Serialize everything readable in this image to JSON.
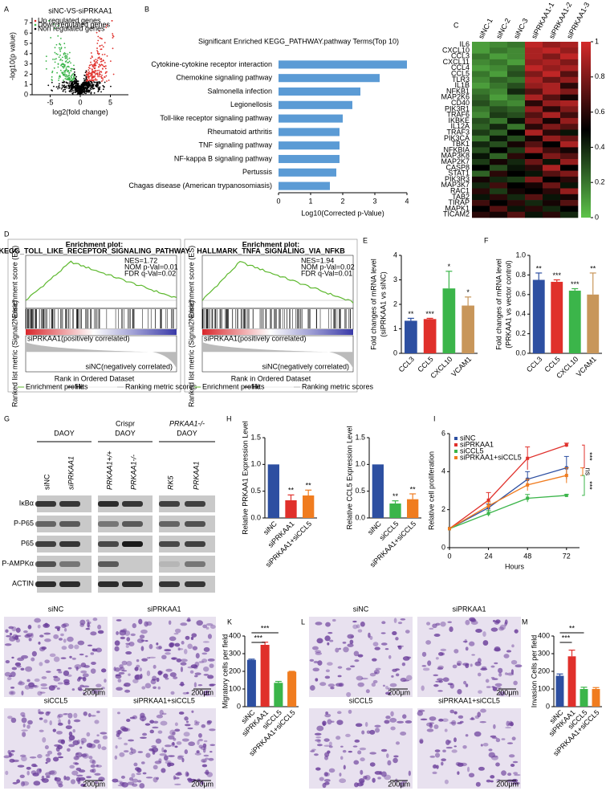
{
  "panel_letters": [
    "A",
    "B",
    "C",
    "D",
    "E",
    "F",
    "G",
    "H",
    "I",
    "J",
    "K",
    "L",
    "M"
  ],
  "chart_data": [
    {
      "type": "volcano",
      "title": "siNC-VS-siPRKAA1",
      "x_label": "log2(fold change)",
      "y_label": "-log10(p value)",
      "legend": [
        "Up regulated genes",
        "Down regulated genes",
        "Non regulated genes"
      ],
      "legend_colors": [
        "#e0302b",
        "#3bb54a",
        "#000000"
      ],
      "xlim": [
        -8,
        8
      ],
      "xticks": [
        -5,
        0,
        5
      ],
      "ylim": [
        0,
        7.5
      ],
      "yticks": [
        0,
        1,
        2,
        3,
        4,
        5,
        6,
        7
      ]
    },
    {
      "type": "hbar",
      "title": "Significant Enriched KEGG_PATHWAY.pathway Terms(Top 10)",
      "x_label": "Log10(Corrected p-Value)",
      "color": "#5b9bd5",
      "categories": [
        "Cytokine-cytokine receptor interaction",
        "Chemokine signaling pathway",
        "Salmonella infection",
        "Legionellosis",
        "Toll-like receptor signaling pathway",
        "Rheumatoid arthritis",
        "TNF signaling pathway",
        "NF-kappa B signaling pathway",
        "Pertussis",
        "Chagas disease (American trypanosomiasis)"
      ],
      "values": [
        4.0,
        3.15,
        2.55,
        2.3,
        2.0,
        1.9,
        1.9,
        1.9,
        1.8,
        1.6
      ],
      "xlim": [
        0,
        4
      ],
      "xticks": [
        0,
        1,
        2,
        3,
        4
      ]
    },
    {
      "type": "heatmap",
      "columns": [
        "siNC-1",
        "siNC-2",
        "siNC-3",
        "siPRKAA1-1",
        "siPRKAA1-2",
        "siPRKAA1-3"
      ],
      "rows": [
        "IL6",
        "CXCL10",
        "CCL3",
        "CXCL11",
        "CCL4",
        "CCL5",
        "TLR3",
        "IL1B",
        "NFKB1",
        "MAP2K6",
        "CD40",
        "PIK3R1",
        "TRAF6",
        "IKBKE",
        "IL12A",
        "TRAF3",
        "PIK3CA",
        "TBK1",
        "NFKBIA",
        "MAP3K8",
        "MAP2K7",
        "CASP8",
        "STAT1",
        "PIK3R3",
        "MAP3K7",
        "RAC1",
        "TAB2",
        "TIRAP",
        "MAPK1",
        "TICAM2"
      ],
      "values": [
        [
          0.1,
          0.15,
          0.2,
          0.95,
          0.85,
          0.9
        ],
        [
          0.1,
          0.2,
          0.15,
          0.9,
          0.95,
          0.85
        ],
        [
          0.2,
          0.1,
          0.15,
          0.9,
          0.8,
          0.95
        ],
        [
          0.15,
          0.2,
          0.1,
          0.85,
          0.9,
          0.8
        ],
        [
          0.1,
          0.15,
          0.25,
          0.95,
          0.85,
          0.9
        ],
        [
          0.2,
          0.1,
          0.3,
          0.8,
          0.95,
          0.7
        ],
        [
          0.15,
          0.25,
          0.2,
          0.9,
          0.75,
          0.85
        ],
        [
          0.1,
          0.2,
          0.3,
          0.85,
          0.9,
          0.6
        ],
        [
          0.2,
          0.15,
          0.4,
          0.7,
          0.9,
          0.8
        ],
        [
          0.25,
          0.1,
          0.2,
          0.9,
          0.7,
          0.55
        ],
        [
          0.3,
          0.2,
          0.15,
          0.6,
          0.85,
          0.9
        ],
        [
          0.2,
          0.3,
          0.25,
          0.85,
          0.6,
          0.8
        ],
        [
          0.15,
          0.35,
          0.3,
          0.7,
          0.9,
          0.65
        ],
        [
          0.3,
          0.2,
          0.45,
          0.8,
          0.55,
          0.85
        ],
        [
          0.25,
          0.4,
          0.2,
          0.6,
          0.8,
          0.7
        ],
        [
          0.35,
          0.25,
          0.5,
          0.9,
          0.6,
          0.45
        ],
        [
          0.2,
          0.45,
          0.3,
          0.55,
          0.85,
          0.75
        ],
        [
          0.4,
          0.3,
          0.55,
          0.7,
          0.5,
          0.9
        ],
        [
          0.3,
          0.5,
          0.35,
          0.85,
          0.65,
          0.55
        ],
        [
          0.45,
          0.25,
          0.6,
          0.5,
          0.8,
          0.7
        ],
        [
          0.35,
          0.55,
          0.4,
          0.75,
          0.45,
          0.85
        ],
        [
          0.5,
          0.3,
          0.45,
          0.6,
          0.9,
          0.5
        ],
        [
          0.25,
          0.6,
          0.5,
          0.45,
          0.7,
          0.8
        ],
        [
          0.55,
          0.4,
          0.35,
          0.8,
          0.5,
          0.6
        ],
        [
          0.4,
          0.65,
          0.5,
          0.55,
          0.75,
          0.45
        ],
        [
          0.6,
          0.35,
          0.55,
          0.5,
          0.6,
          0.85
        ],
        [
          0.45,
          0.6,
          0.4,
          0.7,
          0.45,
          0.55
        ],
        [
          0.65,
          0.5,
          0.6,
          0.4,
          0.55,
          0.7
        ],
        [
          0.5,
          0.7,
          0.45,
          0.6,
          0.4,
          0.5
        ],
        [
          0.6,
          0.55,
          0.7,
          0.45,
          0.6,
          0.4
        ]
      ],
      "clim": [
        0,
        1
      ],
      "colorbar_ticks": [
        0,
        0.2,
        0.4,
        0.6,
        0.8,
        1
      ],
      "colors": [
        "#5ec44a",
        "#000000",
        "#d42a2a"
      ]
    },
    {
      "type": "gsea",
      "heading": "Enrichment plot:",
      "title": "KEGG_TOLL_LIKE_RECEPTOR_SIGNALING_PATHWAY",
      "stats": [
        "NES=1.72",
        "NOM p-Val=0.01",
        "FDR q-Val=0.02"
      ],
      "pos_label": "siPRKAA1(positively correlated)",
      "neg_label": "siNC(negatively correlated)",
      "y_label": "Enrichment score (ES)",
      "y2_label": "Ranked list metric (Signal2Noise)",
      "x_label": "Rank in Ordered Dataset",
      "legend": [
        "Enrichment profile",
        "Hits",
        "Ranking metric scores"
      ]
    },
    {
      "type": "gsea",
      "heading": "Enrichment plot:",
      "title": "HALLMARK_TNFA_SIGNALING_VIA_NFKB",
      "stats": [
        "NES=1.94",
        "NOM p-Val=0.02",
        "FDR q-Val=0.01"
      ],
      "pos_label": "siPRKAA1(positively correlated)",
      "neg_label": "siNC(negatively correlated)",
      "y_label": "Enrichment score (ES)",
      "y2_label": "Ranked list metric (Signal2Noise)",
      "x_label": "Rank in Ordered Dataset",
      "legend": [
        "Enrichment profile",
        "Hits",
        "Ranking metric scores"
      ]
    },
    {
      "type": "bar",
      "y_label": [
        "Fold changes of mRNA level",
        "(siPRKAA1 vs siNC)"
      ],
      "categories": [
        "CCL3",
        "CCL5",
        "CXCL10",
        "VCAM1"
      ],
      "values": [
        1.33,
        1.4,
        2.65,
        1.95
      ],
      "errors": [
        0.1,
        0.03,
        0.7,
        0.35
      ],
      "annotations": [
        "**",
        "***",
        "*",
        "*"
      ],
      "colors": [
        "#2d4fa1",
        "#e0302b",
        "#3bb54a",
        "#c8965a"
      ],
      "ylim": [
        0,
        4
      ],
      "yticks": [
        0,
        1,
        2,
        3,
        4
      ]
    },
    {
      "type": "bar",
      "y_label": [
        "Fold changes of mRNA level",
        "(PRKAA1 vs vector control)"
      ],
      "categories": [
        "CCL3",
        "CCL5",
        "CXCL10",
        "VCAM1"
      ],
      "values": [
        0.75,
        0.73,
        0.64,
        0.6
      ],
      "errors": [
        0.07,
        0.02,
        0.02,
        0.22
      ],
      "annotations": [
        "**",
        "***",
        "***",
        "**"
      ],
      "colors": [
        "#2d4fa1",
        "#e0302b",
        "#3bb54a",
        "#c8965a"
      ],
      "ylim": [
        0,
        1.0
      ],
      "yticks": [
        {
          "value": 0,
          "label": "0.0"
        },
        {
          "value": 0.2,
          "label": "0.2"
        },
        {
          "value": 0.4,
          "label": "0.4"
        },
        {
          "value": 0.6,
          "label": "0.6"
        },
        {
          "value": 0.8,
          "label": "0.8"
        },
        {
          "value": 1,
          "label": "1.0"
        }
      ]
    },
    {
      "type": "bar",
      "y_label": [
        "Relative PRKAA1 Expression Level"
      ],
      "categories": [
        "siNC",
        "siPRKAA1",
        "siPRKAA1+siCCL5"
      ],
      "values": [
        1.0,
        0.33,
        0.42
      ],
      "errors": [
        0,
        0.1,
        0.1
      ],
      "annotations": [
        "",
        "**",
        "**"
      ],
      "colors": [
        "#2d4fa1",
        "#e0302b",
        "#f07c1f"
      ],
      "ylim": [
        0,
        1.5
      ],
      "yticks": [
        {
          "value": 0,
          "label": "0.0"
        },
        {
          "value": 0.5,
          "label": "0.5"
        },
        {
          "value": 1,
          "label": "1.0"
        },
        {
          "value": 1.5,
          "label": "1.5"
        }
      ]
    },
    {
      "type": "bar",
      "y_label": [
        "Relative CCL5 Expression Level"
      ],
      "categories": [
        "siNC",
        "siCCL5",
        "siPRKAA1+siCCL5"
      ],
      "values": [
        1.0,
        0.27,
        0.35
      ],
      "errors": [
        0,
        0.05,
        0.1
      ],
      "annotations": [
        "",
        "**",
        "**"
      ],
      "colors": [
        "#2d4fa1",
        "#3bb54a",
        "#f07c1f"
      ],
      "ylim": [
        0,
        1.5
      ],
      "yticks": [
        {
          "value": 0,
          "label": "0.0"
        },
        {
          "value": 0.5,
          "label": "0.5"
        },
        {
          "value": 1,
          "label": "1.0"
        },
        {
          "value": 1.5,
          "label": "1.5"
        }
      ]
    },
    {
      "type": "line",
      "y_label": "Relative cell proliferation",
      "x_label": "Hours",
      "x": [
        0,
        24,
        48,
        72
      ],
      "xlim": [
        0,
        80
      ],
      "xticks": [
        0,
        24,
        48,
        72
      ],
      "ylim": [
        0,
        6
      ],
      "yticks": [
        0,
        2,
        4,
        6
      ],
      "series": [
        {
          "name": "siNC",
          "color": "#2d4fa1",
          "values": [
            1,
            2.1,
            3.6,
            4.2
          ],
          "errors": [
            0,
            0.2,
            0.4,
            0.6
          ]
        },
        {
          "name": "siPRKAA1",
          "color": "#e0302b",
          "values": [
            1,
            2.5,
            4.7,
            5.4
          ],
          "errors": [
            0,
            0.4,
            0.6,
            0.1
          ]
        },
        {
          "name": "siCCL5",
          "color": "#3bb54a",
          "values": [
            1,
            1.8,
            2.6,
            2.75
          ],
          "errors": [
            0,
            0.15,
            0.2,
            0.05
          ]
        },
        {
          "name": "siPRKAA1+siCCL5",
          "color": "#f07c1f",
          "values": [
            1,
            2.2,
            3.3,
            3.8
          ],
          "errors": [
            0,
            0.2,
            0.3,
            0.4
          ]
        }
      ],
      "brackets": [
        {
          "label": "***",
          "color": "#e0302b"
        },
        {
          "label": "ns",
          "color": "#f07c1f"
        },
        {
          "label": "***",
          "color": "#3bb54a"
        }
      ]
    },
    {
      "type": "bar",
      "y_label": [
        "Migratory cells per field"
      ],
      "categories": [
        "siNC",
        "siPRKAA1",
        "siCCL5",
        "siPRKAA1+siCCL5"
      ],
      "values": [
        265,
        350,
        135,
        198
      ],
      "errors": [
        4,
        15,
        8,
        2
      ],
      "annotations": [
        "",
        "",
        "",
        ""
      ],
      "brackets": [
        "***",
        "***"
      ],
      "colors": [
        "#2d4fa1",
        "#e0302b",
        "#3bb54a",
        "#f07c1f"
      ],
      "ylim": [
        0,
        400
      ],
      "yticks": [
        0,
        100,
        200,
        300,
        400
      ]
    },
    {
      "type": "bar",
      "y_label": [
        "Invasion Cells per field"
      ],
      "categories": [
        "siNC",
        "siPRKAA1",
        "siCCL5",
        "siPRKAA1+siCCL5"
      ],
      "values": [
        175,
        285,
        100,
        100
      ],
      "errors": [
        10,
        35,
        10,
        8
      ],
      "annotations": [
        "",
        "",
        "",
        ""
      ],
      "brackets": [
        "***",
        "**"
      ],
      "colors": [
        "#2d4fa1",
        "#e0302b",
        "#3bb54a",
        "#f07c1f"
      ],
      "ylim": [
        0,
        400
      ],
      "yticks": [
        0,
        100,
        200,
        300,
        400
      ]
    }
  ],
  "western_blot": {
    "groups": [
      [
        "DAOY"
      ],
      [
        "Crispr",
        "DAOY"
      ],
      [
        "PRKAA1-/-",
        "DAOY"
      ]
    ],
    "lanes": [
      "siNC",
      "siPRKAA1",
      "PRKAA1+/+",
      "PRKAA1-/-",
      "RK5",
      "PRKAA1"
    ],
    "proteins": [
      "IκBα",
      "P-P65",
      "P65",
      "P-AMPKα",
      "ACTIN"
    ]
  },
  "micrographs": {
    "migration": [
      "siNC",
      "siPRKAA1",
      "siCCL5",
      "siPRKAA1+siCCL5"
    ],
    "invasion": [
      "siNC",
      "siPRKAA1",
      "siCCL5",
      "siPRKAA1+siCCL5"
    ],
    "scale_bar": "200μm"
  }
}
